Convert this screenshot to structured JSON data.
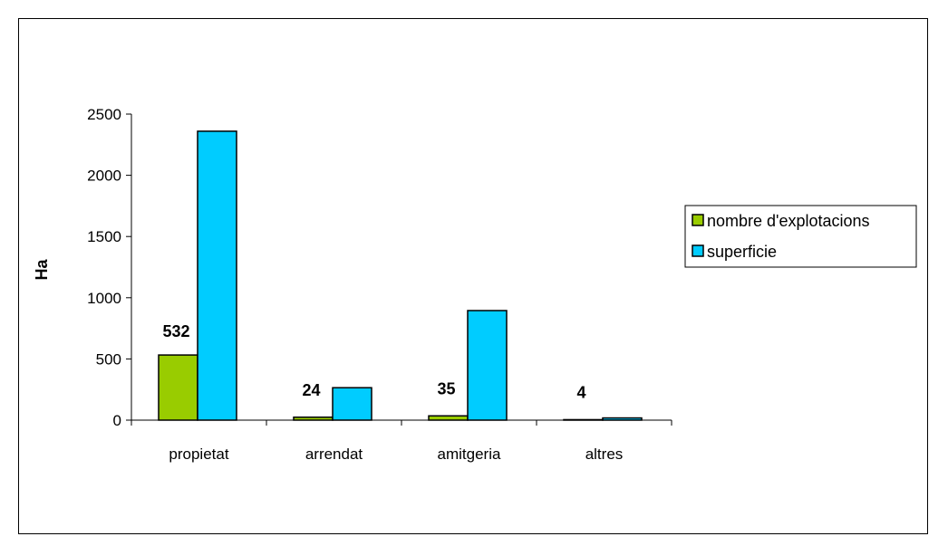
{
  "chart_data": {
    "type": "bar",
    "categories": [
      "propietat",
      "arrendat",
      "amitgeria",
      "altres"
    ],
    "series": [
      {
        "name": "nombre d'explotacions",
        "values": [
          532,
          24,
          35,
          4
        ],
        "color": "#99cc00",
        "labels": [
          "532",
          "24",
          "35",
          "4"
        ]
      },
      {
        "name": "superficie",
        "values": [
          2360,
          265,
          895,
          18
        ],
        "color": "#00ccff"
      }
    ],
    "ylabel": "Ha",
    "ylim": [
      0,
      2500
    ],
    "yticks": [
      0,
      500,
      1000,
      1500,
      2000,
      2500
    ],
    "legend_position": "right",
    "grid": false
  }
}
